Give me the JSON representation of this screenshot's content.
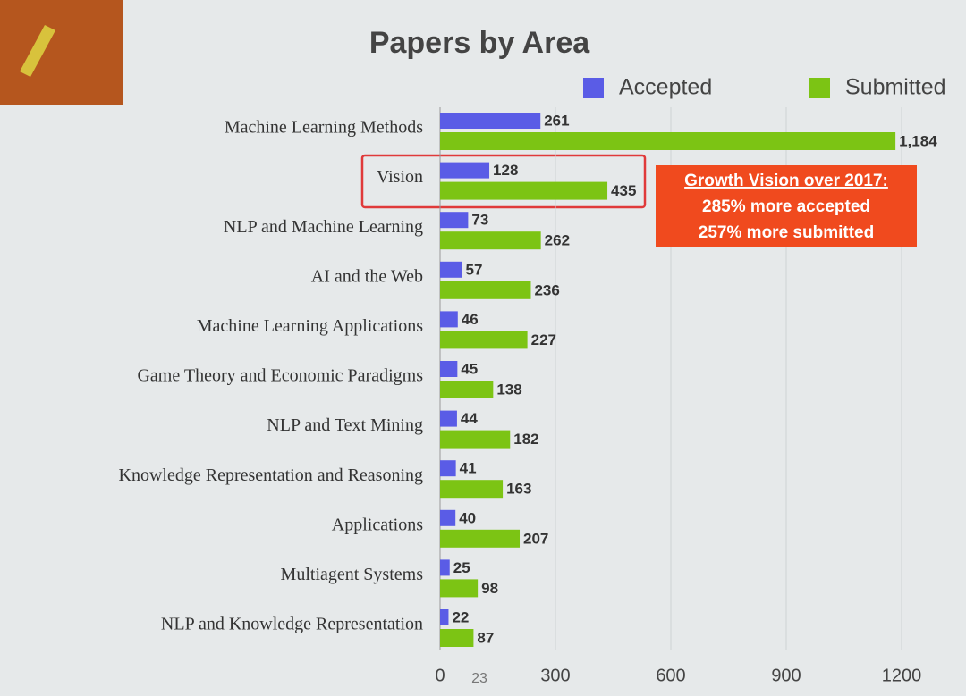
{
  "chart_data": {
    "type": "bar",
    "orientation": "horizontal",
    "title": "Papers by Area",
    "categories": [
      "Machine Learning Methods",
      "Vision",
      "NLP and Machine Learning",
      "AI and the Web",
      "Machine Learning Applications",
      "Game Theory and Economic Paradigms",
      "NLP and Text Mining",
      "Knowledge Representation and Reasoning",
      "Applications",
      "Multiagent Systems",
      "NLP and Knowledge Representation"
    ],
    "series": [
      {
        "name": "Accepted",
        "color": "#5a5ce6",
        "values": [
          261,
          128,
          73,
          57,
          46,
          45,
          44,
          41,
          40,
          25,
          22
        ]
      },
      {
        "name": "Submitted",
        "color": "#7cc414",
        "values": [
          1184,
          435,
          262,
          236,
          227,
          138,
          182,
          163,
          207,
          98,
          87
        ],
        "value_labels": [
          "1,184",
          "435",
          "262",
          "236",
          "227",
          "138",
          "182",
          "163",
          "207",
          "98",
          "87"
        ]
      }
    ],
    "xlim": [
      0,
      1200
    ],
    "xticks": [
      0,
      300,
      600,
      900,
      1200
    ],
    "grid": true,
    "legend": "top-right",
    "annotation": [
      "Growth Vision over 2017:",
      "285% more accepted",
      "257% more submitted"
    ],
    "slide_number": "23"
  }
}
